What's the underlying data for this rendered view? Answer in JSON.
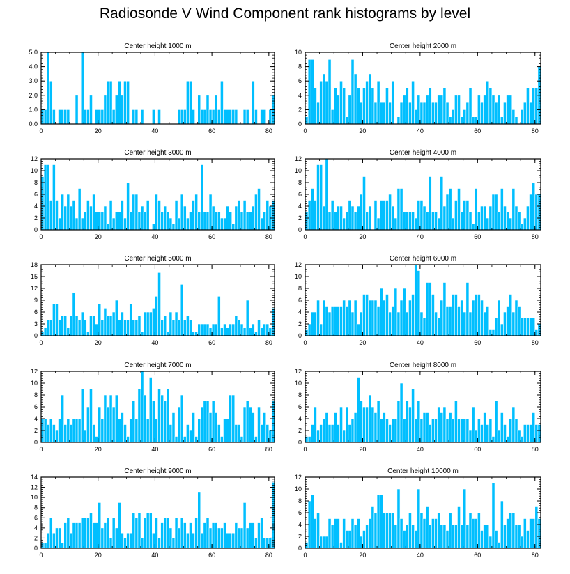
{
  "title": "Radiosonde V Wind Component rank histograms by level",
  "colors": {
    "bar": "#00BFFF",
    "bar_edge": "#ffffff",
    "axis": "#000000"
  },
  "chart_data": [
    {
      "type": "bar",
      "title": "Center height 1000 m",
      "xlim": [
        0,
        82
      ],
      "ylim": [
        0,
        5
      ],
      "xticks": [
        0,
        20,
        40,
        60,
        80
      ],
      "xticklabels": [
        "0",
        "20",
        "40",
        "60",
        "80"
      ],
      "yticks": [
        0,
        1,
        2,
        3,
        4,
        5
      ],
      "yticklabels": [
        "0.0",
        "1.0",
        "2.0",
        "3.0",
        "4.0",
        "5.0"
      ],
      "values": [
        1,
        1,
        5,
        3,
        1,
        0,
        1,
        1,
        1,
        1,
        0,
        0,
        2,
        0,
        5,
        1,
        1,
        2,
        0,
        1,
        1,
        1,
        2,
        3,
        3,
        1,
        2,
        3,
        2,
        3,
        3,
        0,
        1,
        1,
        0,
        1,
        0,
        0,
        0,
        1,
        0,
        1,
        0,
        0,
        0,
        0,
        0,
        0,
        1,
        1,
        1,
        3,
        3,
        1,
        0,
        2,
        1,
        1,
        2,
        1,
        1,
        2,
        1,
        3,
        1,
        1,
        1,
        1,
        1,
        0,
        0,
        1,
        1,
        0,
        3,
        1,
        0,
        1,
        1,
        0,
        1,
        2
      ]
    },
    {
      "type": "bar",
      "title": "Center height 2000 m",
      "xlim": [
        0,
        82
      ],
      "ylim": [
        0,
        10
      ],
      "xticks": [
        0,
        20,
        40,
        60,
        80
      ],
      "xticklabels": [
        "0",
        "20",
        "40",
        "60",
        "80"
      ],
      "yticks": [
        0,
        2,
        4,
        6,
        8,
        10
      ],
      "yticklabels": [
        "0",
        "2",
        "4",
        "6",
        "8",
        "10"
      ],
      "values": [
        1,
        9,
        9,
        5,
        3,
        6,
        7,
        6,
        9,
        2,
        5,
        4,
        6,
        5,
        1,
        4,
        9,
        7,
        5,
        3,
        5,
        6,
        7,
        5,
        3,
        6,
        3,
        3,
        5,
        3,
        6,
        0,
        1,
        3,
        4,
        5,
        3,
        6,
        2,
        4,
        3,
        3,
        4,
        5,
        3,
        3,
        4,
        4,
        5,
        3,
        1,
        2,
        4,
        4,
        1,
        2,
        3,
        5,
        1,
        1,
        4,
        3,
        4,
        6,
        5,
        4,
        3,
        4,
        1,
        3,
        4,
        4,
        2,
        1,
        0,
        2,
        3,
        5,
        3,
        5,
        5,
        8
      ]
    },
    {
      "type": "bar",
      "title": "Center height 3000 m",
      "xlim": [
        0,
        82
      ],
      "ylim": [
        0,
        12
      ],
      "xticks": [
        0,
        20,
        40,
        60,
        80
      ],
      "xticklabels": [
        "0",
        "20",
        "40",
        "60",
        "80"
      ],
      "yticks": [
        0,
        2,
        4,
        6,
        8,
        10,
        12
      ],
      "yticklabels": [
        "0",
        "2",
        "4",
        "6",
        "8",
        "10",
        "12"
      ],
      "values": [
        9,
        11,
        11,
        5,
        11,
        5,
        2,
        6,
        4,
        6,
        4,
        5,
        2,
        7,
        2,
        3,
        5,
        4,
        6,
        3,
        3,
        3,
        4,
        1,
        5,
        2,
        3,
        3,
        5,
        2,
        8,
        3,
        6,
        6,
        3,
        4,
        3,
        5,
        0,
        1,
        6,
        5,
        3,
        4,
        3,
        2,
        1,
        5,
        2,
        6,
        4,
        2,
        3,
        5,
        6,
        3,
        11,
        3,
        3,
        6,
        4,
        3,
        3,
        2,
        2,
        4,
        3,
        1,
        4,
        5,
        3,
        5,
        3,
        3,
        4,
        6,
        7,
        2,
        3,
        5,
        4,
        5
      ]
    },
    {
      "type": "bar",
      "title": "Center height 4000 m",
      "xlim": [
        0,
        82
      ],
      "ylim": [
        0,
        12
      ],
      "xticks": [
        0,
        20,
        40,
        60,
        80
      ],
      "xticklabels": [
        "0",
        "20",
        "40",
        "60",
        "80"
      ],
      "yticks": [
        0,
        2,
        4,
        6,
        8,
        10,
        12
      ],
      "yticklabels": [
        "0",
        "2",
        "4",
        "6",
        "8",
        "10",
        "12"
      ],
      "values": [
        3,
        5,
        7,
        5,
        11,
        11,
        4,
        12,
        3,
        5,
        3,
        4,
        4,
        2,
        3,
        5,
        4,
        3,
        4,
        6,
        9,
        3,
        4,
        0,
        5,
        2,
        5,
        5,
        5,
        6,
        4,
        2,
        7,
        7,
        3,
        3,
        3,
        3,
        2,
        5,
        5,
        4,
        3,
        9,
        3,
        3,
        2,
        9,
        4,
        6,
        7,
        2,
        5,
        7,
        3,
        5,
        5,
        3,
        1,
        7,
        3,
        4,
        4,
        2,
        4,
        6,
        6,
        3,
        7,
        4,
        3,
        2,
        7,
        4,
        3,
        1,
        2,
        4,
        6,
        8,
        6,
        6
      ]
    },
    {
      "type": "bar",
      "title": "Center height 5000 m",
      "xlim": [
        0,
        82
      ],
      "ylim": [
        0,
        18
      ],
      "xticks": [
        0,
        20,
        40,
        60,
        80
      ],
      "xticklabels": [
        "0",
        "20",
        "40",
        "60",
        "80"
      ],
      "yticks": [
        0,
        3,
        6,
        9,
        12,
        15,
        18
      ],
      "yticklabels": [
        "0",
        "3",
        "6",
        "9",
        "12",
        "15",
        "18"
      ],
      "values": [
        1,
        2,
        4,
        4,
        8,
        8,
        4,
        5,
        5,
        2,
        5,
        11,
        5,
        4,
        6,
        4,
        1,
        5,
        5,
        3,
        8,
        4,
        7,
        5,
        5,
        6,
        9,
        4,
        6,
        4,
        4,
        8,
        4,
        4,
        5,
        1,
        6,
        6,
        6,
        7,
        10,
        16,
        4,
        5,
        1,
        6,
        4,
        6,
        4,
        13,
        4,
        5,
        4,
        1,
        1,
        3,
        3,
        3,
        3,
        2,
        3,
        3,
        10,
        2,
        3,
        2,
        3,
        3,
        5,
        4,
        3,
        2,
        9,
        2,
        3,
        1,
        4,
        2,
        3,
        3,
        2,
        7
      ]
    },
    {
      "type": "bar",
      "title": "Center height 6000 m",
      "xlim": [
        0,
        82
      ],
      "ylim": [
        0,
        12
      ],
      "xticks": [
        0,
        20,
        40,
        60,
        80
      ],
      "xticklabels": [
        "0",
        "20",
        "40",
        "60",
        "80"
      ],
      "yticks": [
        0,
        2,
        4,
        6,
        8,
        10,
        12
      ],
      "yticklabels": [
        "0",
        "2",
        "4",
        "6",
        "8",
        "10",
        "12"
      ],
      "values": [
        1,
        2,
        4,
        4,
        6,
        2,
        6,
        5,
        4,
        5,
        5,
        5,
        5,
        6,
        5,
        6,
        4,
        6,
        2,
        4,
        7,
        7,
        6,
        6,
        6,
        5,
        8,
        6,
        7,
        4,
        5,
        8,
        4,
        6,
        8,
        4,
        6,
        7,
        12,
        11,
        4,
        3,
        9,
        9,
        7,
        4,
        3,
        6,
        9,
        5,
        5,
        7,
        7,
        5,
        6,
        4,
        9,
        4,
        6,
        7,
        7,
        6,
        4,
        5,
        1,
        1,
        3,
        6,
        2,
        4,
        5,
        7,
        4,
        6,
        5,
        3,
        3,
        3,
        3,
        3,
        1,
        2
      ]
    },
    {
      "type": "bar",
      "title": "Center height 7000 m",
      "xlim": [
        0,
        82
      ],
      "ylim": [
        0,
        12
      ],
      "xticks": [
        0,
        20,
        40,
        60,
        80
      ],
      "xticklabels": [
        "0",
        "20",
        "40",
        "60",
        "80"
      ],
      "yticks": [
        0,
        2,
        4,
        6,
        8,
        10,
        12
      ],
      "yticklabels": [
        "0",
        "2",
        "4",
        "6",
        "8",
        "10",
        "12"
      ],
      "values": [
        4,
        4,
        3,
        4,
        3,
        2,
        4,
        8,
        3,
        4,
        3,
        4,
        4,
        4,
        9,
        2,
        6,
        9,
        3,
        1,
        6,
        4,
        8,
        6,
        8,
        6,
        8,
        4,
        5,
        3,
        1,
        4,
        7,
        4,
        9,
        12,
        8,
        4,
        11,
        7,
        4,
        9,
        8,
        7,
        9,
        3,
        5,
        1,
        6,
        8,
        1,
        3,
        2,
        5,
        1,
        4,
        6,
        7,
        7,
        5,
        7,
        5,
        3,
        1,
        4,
        4,
        8,
        8,
        3,
        3,
        1,
        6,
        7,
        6,
        5,
        1,
        6,
        3,
        5,
        3,
        2,
        7
      ]
    },
    {
      "type": "bar",
      "title": "Center height 8000 m",
      "xlim": [
        0,
        82
      ],
      "ylim": [
        0,
        12
      ],
      "xticks": [
        0,
        20,
        40,
        60,
        80
      ],
      "xticklabels": [
        "0",
        "20",
        "40",
        "60",
        "80"
      ],
      "yticks": [
        0,
        2,
        4,
        6,
        8,
        10,
        12
      ],
      "yticklabels": [
        "0",
        "2",
        "4",
        "6",
        "8",
        "10",
        "12"
      ],
      "values": [
        1,
        1,
        3,
        6,
        2,
        3,
        4,
        5,
        3,
        3,
        5,
        3,
        6,
        2,
        6,
        3,
        4,
        5,
        11,
        7,
        6,
        6,
        8,
        6,
        5,
        7,
        4,
        5,
        4,
        3,
        4,
        4,
        7,
        10,
        4,
        7,
        6,
        9,
        4,
        7,
        4,
        5,
        5,
        3,
        4,
        4,
        6,
        5,
        6,
        4,
        5,
        4,
        7,
        4,
        4,
        4,
        4,
        2,
        6,
        2,
        4,
        3,
        5,
        3,
        4,
        1,
        7,
        2,
        5,
        3,
        1,
        4,
        6,
        4,
        2,
        1,
        3,
        3,
        3,
        5,
        3,
        3
      ]
    },
    {
      "type": "bar",
      "title": "Center height 9000 m",
      "xlim": [
        0,
        82
      ],
      "ylim": [
        0,
        14
      ],
      "xticks": [
        0,
        20,
        40,
        60,
        80
      ],
      "xticklabels": [
        "0",
        "20",
        "40",
        "60",
        "80"
      ],
      "yticks": [
        0,
        2,
        4,
        6,
        8,
        10,
        12,
        14
      ],
      "yticklabels": [
        "0",
        "2",
        "4",
        "6",
        "8",
        "10",
        "12",
        "14"
      ],
      "values": [
        1,
        1,
        3,
        6,
        3,
        4,
        4,
        1,
        5,
        6,
        3,
        5,
        5,
        5,
        6,
        6,
        6,
        7,
        5,
        5,
        9,
        4,
        5,
        6,
        2,
        6,
        4,
        9,
        3,
        2,
        3,
        3,
        7,
        6,
        7,
        2,
        6,
        7,
        7,
        3,
        6,
        2,
        5,
        6,
        6,
        4,
        2,
        6,
        4,
        6,
        5,
        3,
        5,
        3,
        6,
        11,
        3,
        5,
        6,
        4,
        5,
        5,
        4,
        4,
        5,
        3,
        3,
        3,
        5,
        4,
        4,
        9,
        4,
        5,
        5,
        2,
        5,
        6,
        2,
        2,
        2,
        13
      ]
    },
    {
      "type": "bar",
      "title": "Center height 10000 m",
      "xlim": [
        0,
        82
      ],
      "ylim": [
        0,
        12
      ],
      "xticks": [
        0,
        20,
        40,
        60,
        80
      ],
      "xticklabels": [
        "0",
        "20",
        "40",
        "60",
        "80"
      ],
      "yticks": [
        0,
        2,
        4,
        6,
        8,
        10,
        12
      ],
      "yticklabels": [
        "0",
        "2",
        "4",
        "6",
        "8",
        "10",
        "12"
      ],
      "values": [
        1,
        8,
        9,
        5,
        6,
        2,
        2,
        2,
        5,
        4,
        5,
        5,
        1,
        5,
        3,
        3,
        5,
        4,
        5,
        2,
        3,
        4,
        5,
        7,
        6,
        9,
        9,
        6,
        6,
        6,
        6,
        4,
        10,
        5,
        3,
        4,
        6,
        4,
        3,
        10,
        6,
        5,
        7,
        4,
        5,
        5,
        6,
        4,
        4,
        3,
        6,
        4,
        4,
        7,
        4,
        10,
        4,
        6,
        5,
        5,
        6,
        3,
        4,
        4,
        2,
        11,
        3,
        1,
        8,
        4,
        5,
        6,
        6,
        4,
        4,
        2,
        5,
        3,
        5,
        5,
        7,
        5
      ]
    }
  ]
}
